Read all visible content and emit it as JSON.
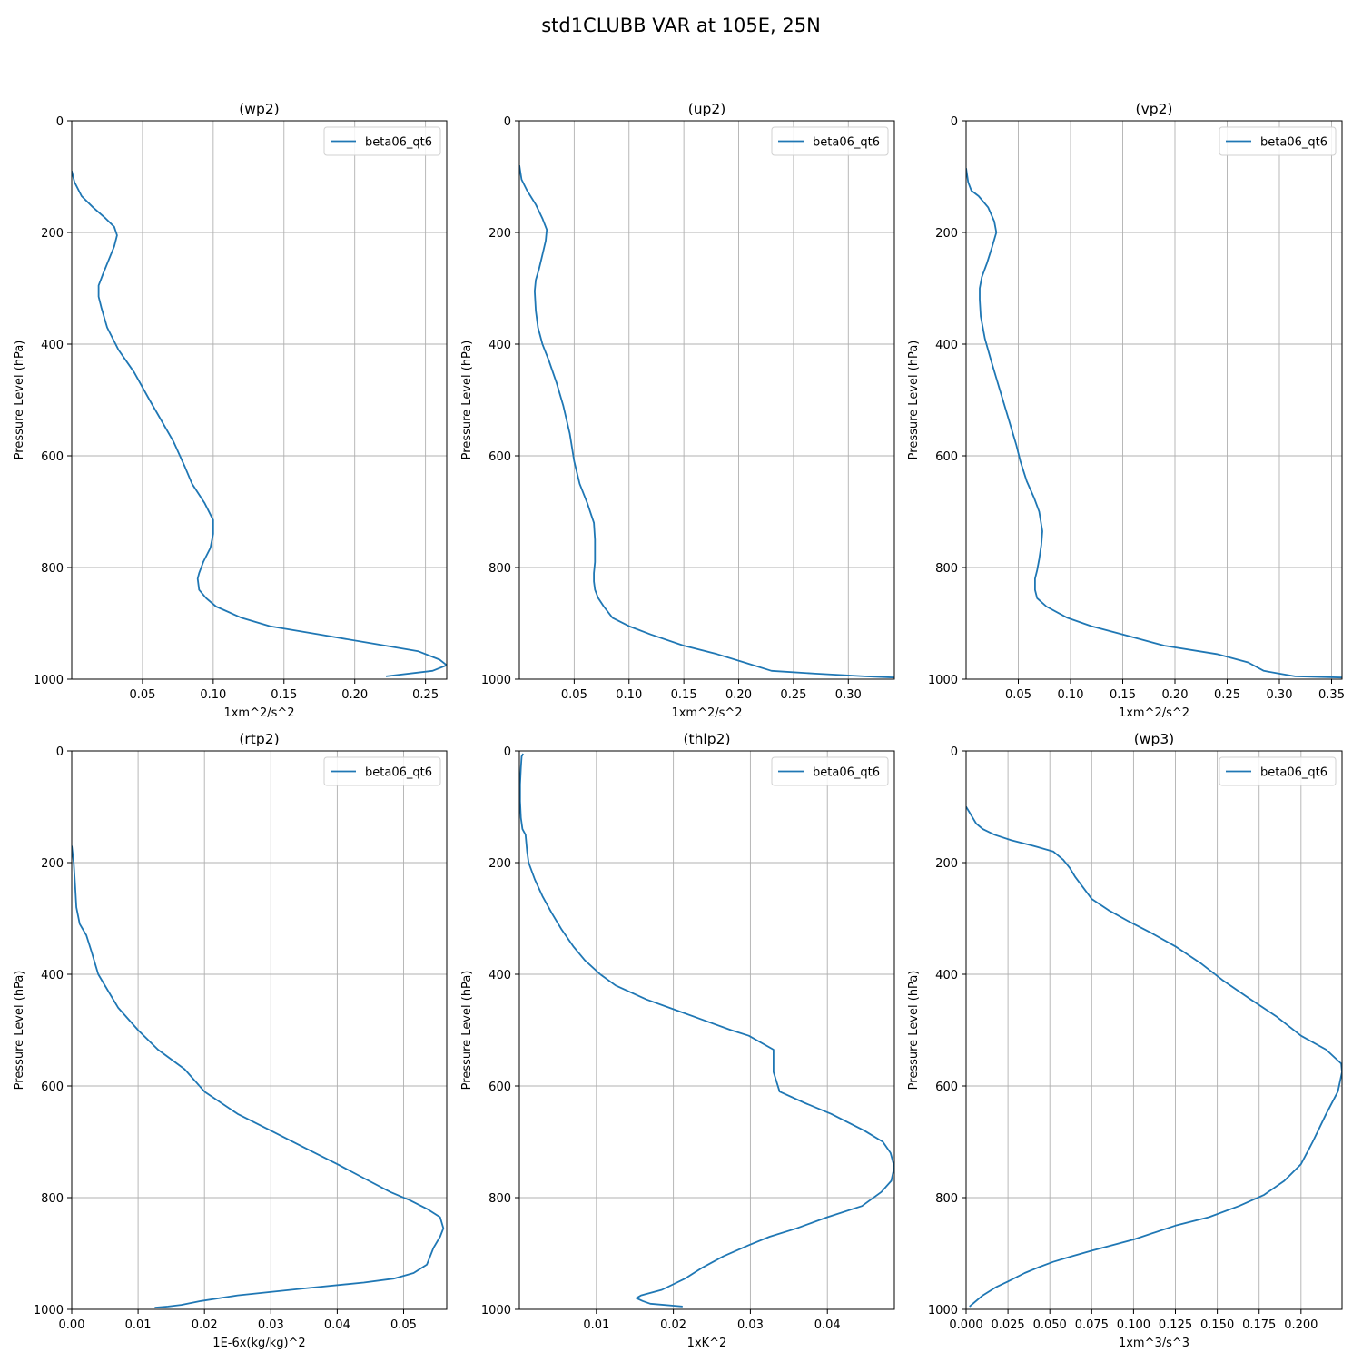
{
  "figure": {
    "title": "std1CLUBB VAR at 105E, 25N",
    "line_color": "#1f77b4"
  },
  "chart_data": [
    {
      "type": "line",
      "title": "(wp2)",
      "xlabel": "1xm^2/s^2",
      "ylabel": "Pressure Level (hPa)",
      "xlim": [
        0,
        0.265
      ],
      "ylim": [
        1000,
        0
      ],
      "xticks": [
        "0.05",
        "0.10",
        "0.15",
        "0.20",
        "0.25"
      ],
      "yticks": [
        "0",
        "200",
        "400",
        "600",
        "800",
        "1000"
      ],
      "grid": true,
      "legend_position": "top-right",
      "series": [
        {
          "name": "beta06_qt6",
          "x": [
            0.0,
            0.002,
            0.007,
            0.015,
            0.024,
            0.03,
            0.032,
            0.03,
            0.026,
            0.022,
            0.019,
            0.019,
            0.021,
            0.025,
            0.033,
            0.044,
            0.055,
            0.072,
            0.08,
            0.085,
            0.094,
            0.1,
            0.1,
            0.098,
            0.093,
            0.09,
            0.089,
            0.09,
            0.095,
            0.102,
            0.12,
            0.14,
            0.175,
            0.21,
            0.245,
            0.26,
            0.265,
            0.255,
            0.222
          ],
          "y": [
            90,
            110,
            135,
            155,
            175,
            190,
            205,
            225,
            250,
            275,
            295,
            315,
            335,
            370,
            410,
            450,
            500,
            575,
            620,
            650,
            685,
            715,
            740,
            765,
            790,
            810,
            820,
            840,
            855,
            870,
            890,
            905,
            920,
            935,
            950,
            965,
            975,
            985,
            995
          ]
        }
      ]
    },
    {
      "type": "line",
      "title": "(up2)",
      "xlabel": "1xm^2/s^2",
      "ylabel": "Pressure Level (hPa)",
      "xlim": [
        0,
        0.342
      ],
      "ylim": [
        1000,
        0
      ],
      "xticks": [
        "0.05",
        "0.10",
        "0.15",
        "0.20",
        "0.25",
        "0.30"
      ],
      "yticks": [
        "0",
        "200",
        "400",
        "600",
        "800",
        "1000"
      ],
      "grid": true,
      "legend_position": "top-right",
      "series": [
        {
          "name": "beta06_qt6",
          "x": [
            0.0,
            0.002,
            0.007,
            0.015,
            0.021,
            0.025,
            0.024,
            0.021,
            0.018,
            0.015,
            0.014,
            0.015,
            0.017,
            0.021,
            0.027,
            0.034,
            0.04,
            0.046,
            0.05,
            0.055,
            0.062,
            0.068,
            0.069,
            0.069,
            0.068,
            0.068,
            0.069,
            0.072,
            0.077,
            0.085,
            0.1,
            0.12,
            0.15,
            0.18,
            0.205,
            0.23,
            0.27,
            0.315,
            0.342
          ],
          "y": [
            80,
            105,
            125,
            150,
            175,
            195,
            215,
            240,
            265,
            285,
            305,
            340,
            370,
            400,
            430,
            470,
            510,
            560,
            610,
            650,
            685,
            720,
            750,
            790,
            810,
            825,
            840,
            855,
            870,
            890,
            905,
            920,
            940,
            955,
            970,
            985,
            990,
            995,
            997
          ]
        }
      ]
    },
    {
      "type": "line",
      "title": "(vp2)",
      "xlabel": "1xm^2/s^2",
      "ylabel": "Pressure Level (hPa)",
      "xlim": [
        0,
        0.36
      ],
      "ylim": [
        1000,
        0
      ],
      "xticks": [
        "0.05",
        "0.10",
        "0.15",
        "0.20",
        "0.25",
        "0.30",
        "0.35"
      ],
      "yticks": [
        "0",
        "200",
        "400",
        "600",
        "800",
        "1000"
      ],
      "grid": true,
      "legend_position": "top-right",
      "series": [
        {
          "name": "beta06_qt6",
          "x": [
            0.0,
            0.002,
            0.005,
            0.012,
            0.021,
            0.027,
            0.029,
            0.025,
            0.02,
            0.015,
            0.013,
            0.013,
            0.014,
            0.018,
            0.024,
            0.032,
            0.04,
            0.048,
            0.052,
            0.058,
            0.065,
            0.07,
            0.073,
            0.072,
            0.07,
            0.068,
            0.066,
            0.066,
            0.068,
            0.077,
            0.097,
            0.12,
            0.15,
            0.19,
            0.24,
            0.27,
            0.285,
            0.3,
            0.315,
            0.36
          ],
          "y": [
            85,
            110,
            125,
            135,
            155,
            180,
            200,
            225,
            255,
            280,
            300,
            320,
            350,
            390,
            430,
            480,
            530,
            580,
            610,
            645,
            675,
            700,
            735,
            760,
            785,
            805,
            820,
            840,
            855,
            870,
            890,
            905,
            920,
            940,
            955,
            970,
            985,
            990,
            995,
            997
          ]
        }
      ]
    },
    {
      "type": "line",
      "title": "(rtp2)",
      "xlabel": "1E-6x(kg/kg)^2",
      "ylabel": "Pressure Level (hPa)",
      "xlim": [
        0,
        0.0565
      ],
      "ylim": [
        1000,
        0
      ],
      "xticks": [
        "0.00",
        "0.01",
        "0.02",
        "0.03",
        "0.04",
        "0.05"
      ],
      "yticks": [
        "0",
        "200",
        "400",
        "600",
        "800",
        "1000"
      ],
      "grid": true,
      "legend_position": "top-right",
      "series": [
        {
          "name": "beta06_qt6",
          "x": [
            0.0,
            0.0003,
            0.0005,
            0.0007,
            0.0012,
            0.0022,
            0.003,
            0.004,
            0.0055,
            0.007,
            0.01,
            0.013,
            0.017,
            0.02,
            0.025,
            0.03,
            0.035,
            0.04,
            0.044,
            0.048,
            0.051,
            0.0535,
            0.0555,
            0.056,
            0.0555,
            0.0545,
            0.0535,
            0.0515,
            0.0485,
            0.044,
            0.0355,
            0.025,
            0.0195,
            0.0165,
            0.0145,
            0.0125
          ],
          "y": [
            170,
            200,
            240,
            280,
            310,
            330,
            360,
            400,
            430,
            460,
            500,
            535,
            570,
            610,
            650,
            680,
            710,
            740,
            765,
            790,
            805,
            820,
            835,
            855,
            870,
            890,
            920,
            935,
            945,
            952,
            962,
            975,
            985,
            992,
            995,
            997
          ]
        }
      ]
    },
    {
      "type": "line",
      "title": "(thlp2)",
      "xlabel": "1xK^2",
      "ylabel": "Pressure Level (hPa)",
      "xlim": [
        0,
        0.0487
      ],
      "ylim": [
        1000,
        0
      ],
      "xticks": [
        "0.01",
        "0.02",
        "0.03",
        "0.04"
      ],
      "yticks": [
        "0",
        "200",
        "400",
        "600",
        "800",
        "1000"
      ],
      "grid": true,
      "legend_position": "top-right",
      "series": [
        {
          "name": "beta06_qt6",
          "x": [
            0.0005,
            0.0003,
            0.0002,
            0.0001,
            0.0001,
            0.0002,
            0.0004,
            0.0008,
            0.001,
            0.0012,
            0.002,
            0.003,
            0.0042,
            0.0055,
            0.007,
            0.0085,
            0.0105,
            0.0125,
            0.0165,
            0.0205,
            0.0245,
            0.0275,
            0.0298,
            0.033,
            0.033,
            0.0338,
            0.037,
            0.0405,
            0.0448,
            0.0472,
            0.0482,
            0.0487,
            0.0483,
            0.047,
            0.0445,
            0.04,
            0.036,
            0.0325,
            0.0298,
            0.0265,
            0.0238,
            0.0215,
            0.0185,
            0.0158,
            0.0152,
            0.016,
            0.017,
            0.0212
          ],
          "y": [
            5,
            10,
            30,
            60,
            90,
            120,
            140,
            150,
            180,
            200,
            230,
            260,
            290,
            320,
            350,
            375,
            400,
            420,
            445,
            465,
            485,
            500,
            510,
            535,
            575,
            610,
            630,
            650,
            680,
            700,
            720,
            745,
            770,
            790,
            815,
            835,
            855,
            870,
            885,
            905,
            925,
            945,
            965,
            975,
            980,
            985,
            990,
            995
          ]
        }
      ]
    },
    {
      "type": "line",
      "title": "(wp3)",
      "xlabel": "1xm^3/s^3",
      "ylabel": "Pressure Level (hPa)",
      "xlim": [
        0,
        0.2245
      ],
      "ylim": [
        1000,
        0
      ],
      "xticks": [
        "0.000",
        "0.025",
        "0.050",
        "0.075",
        "0.100",
        "0.125",
        "0.150",
        "0.175",
        "0.200"
      ],
      "yticks": [
        "0",
        "200",
        "400",
        "600",
        "800",
        "1000"
      ],
      "grid": true,
      "legend_position": "top-right",
      "series": [
        {
          "name": "beta06_qt6",
          "x": [
            0.0,
            0.002,
            0.004,
            0.006,
            0.01,
            0.017,
            0.027,
            0.04,
            0.052,
            0.058,
            0.062,
            0.065,
            0.07,
            0.075,
            0.085,
            0.097,
            0.11,
            0.125,
            0.14,
            0.153,
            0.17,
            0.185,
            0.2,
            0.215,
            0.224,
            0.2245,
            0.222,
            0.215,
            0.207,
            0.2,
            0.19,
            0.178,
            0.163,
            0.145,
            0.125,
            0.1,
            0.075,
            0.063,
            0.052,
            0.043,
            0.035,
            0.025,
            0.018,
            0.01,
            0.002
          ],
          "y": [
            100,
            110,
            120,
            130,
            140,
            150,
            160,
            170,
            180,
            195,
            210,
            225,
            245,
            265,
            285,
            305,
            325,
            350,
            380,
            410,
            445,
            475,
            510,
            535,
            560,
            575,
            610,
            650,
            700,
            740,
            770,
            795,
            815,
            835,
            850,
            875,
            895,
            905,
            915,
            925,
            935,
            950,
            960,
            975,
            995
          ]
        }
      ]
    }
  ]
}
